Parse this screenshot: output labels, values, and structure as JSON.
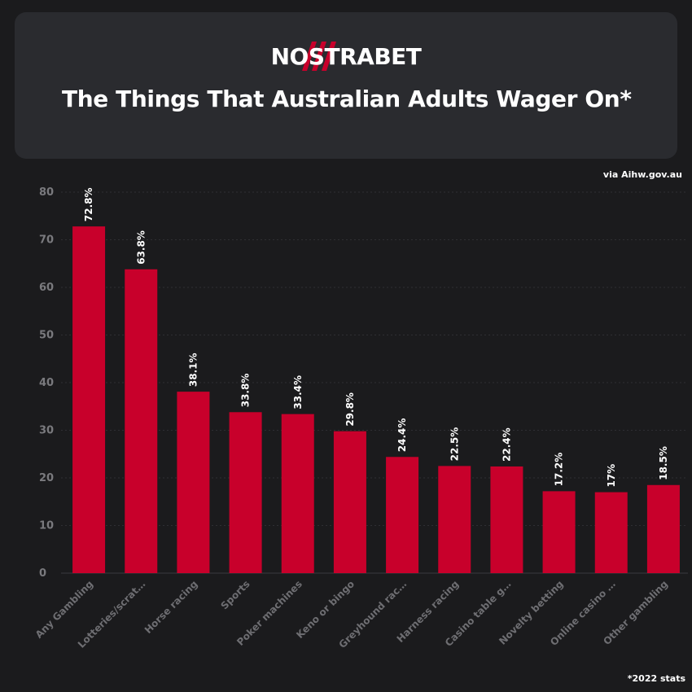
{
  "brand": {
    "logo_text": "NOSTRABET",
    "accent": "#c8002b"
  },
  "header": {
    "title": "The Things That Australian Adults Wager On*"
  },
  "source_note": "via Aihw.gov.au",
  "footnote": "*2022 stats",
  "chart_data": {
    "type": "bar",
    "title": "The Things That Australian Adults Wager On*",
    "xlabel": "",
    "ylabel": "",
    "ylim": [
      0,
      80
    ],
    "yticks": [
      0,
      10,
      20,
      30,
      40,
      50,
      60,
      70,
      80
    ],
    "grid": true,
    "bar_color": "#c8002b",
    "categories": [
      "Any Gambling",
      "Lotteries/scrat…",
      "Horse racing",
      "Sports",
      "Poker machines",
      "Keno or bingo",
      "Greyhound rac…",
      "Harness racing",
      "Casino table g…",
      "Novelty betting",
      "Online casino …",
      "Other gambling"
    ],
    "values": [
      72.8,
      63.8,
      38.1,
      33.8,
      33.4,
      29.8,
      24.4,
      22.5,
      22.4,
      17.2,
      17,
      18.5
    ],
    "data_labels": [
      "72.8%",
      "63.8%",
      "38.1%",
      "33.8%",
      "33.4%",
      "29.8%",
      "24.4%",
      "22.5%",
      "22.4%",
      "17.2%",
      "17%",
      "18.5%"
    ]
  }
}
